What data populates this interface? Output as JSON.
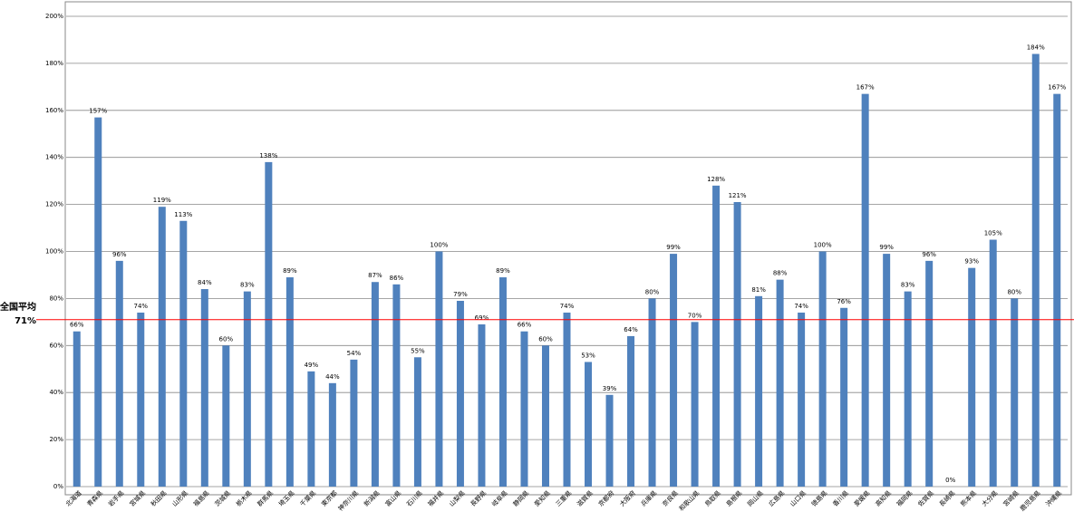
{
  "chart_data": {
    "type": "bar",
    "categories": [
      "北海道",
      "青森県",
      "岩手県",
      "宮城県",
      "秋田県",
      "山形県",
      "福島県",
      "茨城県",
      "栃木県",
      "群馬県",
      "埼玉県",
      "千葉県",
      "東京都",
      "神奈川県",
      "新潟県",
      "富山県",
      "石川県",
      "福井県",
      "山梨県",
      "長野県",
      "岐阜県",
      "静岡県",
      "愛知県",
      "三重県",
      "滋賀県",
      "京都府",
      "大阪府",
      "兵庫県",
      "奈良県",
      "和歌山県",
      "鳥取県",
      "島根県",
      "岡山県",
      "広島県",
      "山口県",
      "徳島県",
      "香川県",
      "愛媛県",
      "高知県",
      "福岡県",
      "佐賀県",
      "長崎県",
      "熊本県",
      "大分県",
      "宮崎県",
      "鹿児島県",
      "沖縄県"
    ],
    "values": [
      66,
      157,
      96,
      74,
      119,
      113,
      84,
      60,
      83,
      138,
      89,
      49,
      44,
      54,
      87,
      86,
      55,
      100,
      79,
      69,
      89,
      66,
      60,
      74,
      53,
      39,
      64,
      80,
      99,
      70,
      128,
      121,
      81,
      88,
      74,
      100,
      76,
      167,
      99,
      83,
      96,
      0,
      93,
      105,
      80,
      184,
      167
    ],
    "value_labels": [
      "66%",
      "157%",
      "96%",
      "74%",
      "119%",
      "113%",
      "84%",
      "60%",
      "83%",
      "138%",
      "89%",
      "49%",
      "44%",
      "54%",
      "87%",
      "86%",
      "55%",
      "100%",
      "79%",
      "69%",
      "89%",
      "66%",
      "60%",
      "74%",
      "53%",
      "39%",
      "64%",
      "80%",
      "99%",
      "70%",
      "128%",
      "121%",
      "81%",
      "88%",
      "74%",
      "100%",
      "76%",
      "167%",
      "99%",
      "83%",
      "96%",
      "0%",
      "93%",
      "105%",
      "80%",
      "184%",
      "167%"
    ],
    "color": "#4f81bd",
    "ylim": [
      0,
      200
    ],
    "yticks": [
      {
        "value": 0,
        "label": "0%"
      },
      {
        "value": 20,
        "label": "20%"
      },
      {
        "value": 40,
        "label": "40%"
      },
      {
        "value": 60,
        "label": "60%"
      },
      {
        "value": 80,
        "label": "80%"
      },
      {
        "value": 100,
        "label": "100%"
      },
      {
        "value": 120,
        "label": "120%"
      },
      {
        "value": 140,
        "label": "140%"
      },
      {
        "value": 160,
        "label": "160%"
      },
      {
        "value": 180,
        "label": "180%"
      },
      {
        "value": 200,
        "label": "200%"
      }
    ],
    "grid": true,
    "average": {
      "label": "全国平均",
      "value": 71,
      "value_label": "71%",
      "color": "#ff0000"
    }
  }
}
